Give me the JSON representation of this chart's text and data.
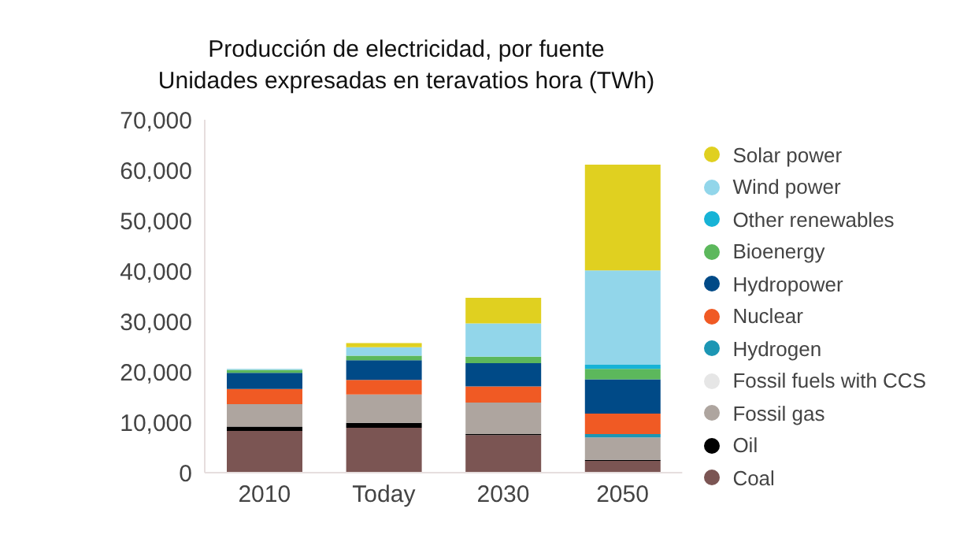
{
  "chart_data": {
    "type": "bar",
    "title": "Producción de electricidad, por fuente",
    "subtitle": "Unidades expresadas en teravatios hora (TWh)",
    "categories": [
      "2010",
      "Today",
      "2030",
      "2050"
    ],
    "stacked": true,
    "ylim": [
      0,
      70000
    ],
    "yticks": [
      {
        "value": 0,
        "label": "0"
      },
      {
        "value": 10000,
        "label": "10,000"
      },
      {
        "value": 20000,
        "label": "20,000"
      },
      {
        "value": 30000,
        "label": "30,000"
      },
      {
        "value": 40000,
        "label": "40,000"
      },
      {
        "value": 50000,
        "label": "50,000"
      },
      {
        "value": 60000,
        "label": "60,000"
      },
      {
        "value": 70000,
        "label": "70,000"
      }
    ],
    "grid": false,
    "legend": "right",
    "series": [
      {
        "name": "Coal",
        "color": "#7b5553",
        "values": [
          8300,
          8900,
          7450,
          2350
        ]
      },
      {
        "name": "Oil",
        "color": "#000000",
        "values": [
          850,
          1000,
          200,
          200
        ]
      },
      {
        "name": "Fossil gas",
        "color": "#aea59f",
        "values": [
          4450,
          5600,
          6250,
          4450
        ]
      },
      {
        "name": "Fossil fuels with CCS",
        "color": "#e6e6e6",
        "values": [
          0,
          0,
          0,
          0
        ]
      },
      {
        "name": "Hydrogen",
        "color": "#1c96b4",
        "values": [
          0,
          0,
          0,
          650
        ]
      },
      {
        "name": "Nuclear",
        "color": "#f05a24",
        "values": [
          3000,
          2900,
          3200,
          4050
        ]
      },
      {
        "name": "Hydropower",
        "color": "#004a87",
        "values": [
          3200,
          3900,
          4600,
          6800
        ]
      },
      {
        "name": "Bioenergy",
        "color": "#5cb85c",
        "values": [
          600,
          900,
          1300,
          2100
        ]
      },
      {
        "name": "Other renewables",
        "color": "#17b3d6",
        "values": [
          0,
          0,
          0,
          800
        ]
      },
      {
        "name": "Wind power",
        "color": "#92d6ea",
        "values": [
          200,
          1700,
          6600,
          18700
        ]
      },
      {
        "name": "Solar power",
        "color": "#e0d020",
        "values": [
          0,
          800,
          5100,
          21000
        ]
      }
    ]
  }
}
